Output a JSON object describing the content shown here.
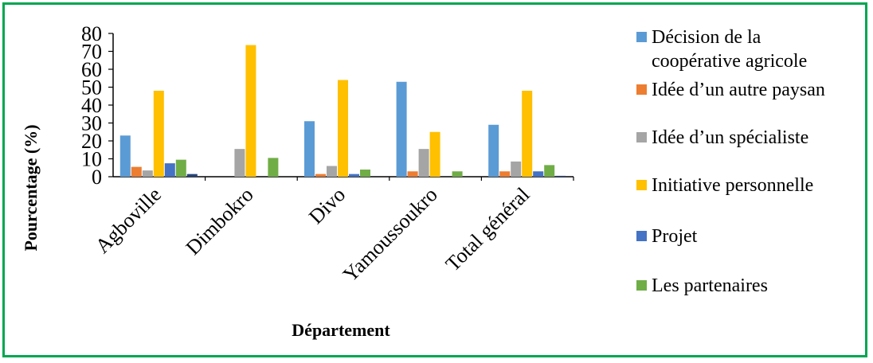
{
  "chart_data": {
    "type": "bar",
    "title": "",
    "xlabel": "Département",
    "ylabel": "Pourcentage (%)",
    "ylim": [
      0,
      80
    ],
    "yticks": [
      "0",
      "10",
      "20",
      "30",
      "40",
      "50",
      "60",
      "70",
      "80"
    ],
    "categories": [
      "Agboville",
      "Dimbokro",
      "Divo",
      "Yamoussoukro",
      "Total général"
    ],
    "legend_position": "right",
    "series": [
      {
        "name": "Décision de la coopérative agricole",
        "name_lines": [
          "Décision de la",
          "coopérative agricole"
        ],
        "color": "#5B9BD5",
        "values": [
          23,
          0,
          31,
          53,
          29
        ]
      },
      {
        "name": "Idée d’un autre paysan",
        "name_lines": [
          "Idée d’un autre paysan"
        ],
        "color": "#ED7D31",
        "values": [
          5.5,
          0,
          1.5,
          3,
          3
        ]
      },
      {
        "name": "Idée d’un spécialiste",
        "name_lines": [
          "Idée d’un spécialiste"
        ],
        "color": "#A5A5A5",
        "values": [
          3.5,
          15.5,
          6,
          15.5,
          8.5
        ]
      },
      {
        "name": "Initiative personnelle",
        "name_lines": [
          "Initiative personnelle"
        ],
        "color": "#FFC000",
        "values": [
          48,
          73.5,
          54,
          25,
          48
        ]
      },
      {
        "name": "Projet",
        "name_lines": [
          "Projet"
        ],
        "color": "#4472C4",
        "values": [
          7.5,
          0,
          1.5,
          0,
          3
        ]
      },
      {
        "name": "Les partenaires",
        "name_lines": [
          " Les partenaires"
        ],
        "color": "#70AD47",
        "values": [
          9.5,
          10.5,
          4,
          3,
          6.5
        ]
      }
    ],
    "extra_series_hint": "",
    "extra_values": [
      1.5,
      0,
      0,
      0,
      0.5
    ]
  }
}
